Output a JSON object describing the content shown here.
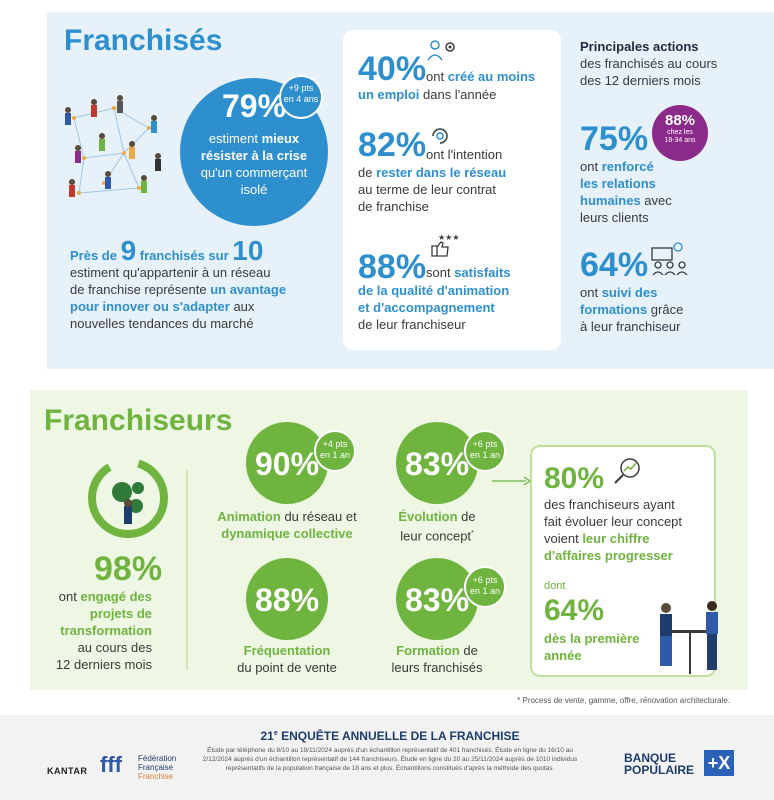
{
  "franchises": {
    "title": "Franchisés",
    "main_stat": {
      "value": "79%",
      "line1_a": "estiment ",
      "line1_b": "mieux",
      "line2": "résister à la crise",
      "line3": "qu'un commerçant",
      "line4": "isolé"
    },
    "badge": {
      "line1": "+9 pts",
      "line2": "en 4 ans"
    },
    "pres": {
      "a": "Près de ",
      "n1": "9",
      "b": " franchisés sur ",
      "n2": "10",
      "l2": "estiment qu'appartenir à un réseau",
      "l3a": "de franchise représente ",
      "l3b": "un avantage",
      "l4": "pour innover ou s'adapter",
      "l4b": " aux",
      "l5": "nouvelles tendances du marché"
    },
    "card": [
      {
        "value": "40%",
        "a": "ont ",
        "b": "créé au moins",
        "c": "un emploi",
        "d": " dans l'année"
      },
      {
        "value": "82%",
        "a": "ont l'intention",
        "b": "de ",
        "c": "rester dans le réseau",
        "d": "au terme de leur contrat",
        "e": "de franchise"
      },
      {
        "value": "88%",
        "a": "sont ",
        "b": "satisfaits",
        "c": "de la qualité d'animation",
        "d": "et d'accompagnement",
        "e": "de leur franchiseur"
      }
    ],
    "actions": {
      "title": "Principales actions",
      "sub1": "des franchisés au cours",
      "sub2": "des 12 derniers mois",
      "a1": {
        "value": "75%",
        "l1a": "ont ",
        "l1b": "renforcé",
        "l2": "les relations",
        "l3a": "humaines",
        "l3b": " avec",
        "l4": "leurs clients"
      },
      "badge": {
        "value": "88%",
        "l1": "chez les",
        "l2": "18-34 ans"
      },
      "a2": {
        "value": "64%",
        "l1a": "ont ",
        "l1b": "suivi des",
        "l2a": "formations",
        "l2b": " grâce",
        "l3": "à leur franchiseur"
      }
    }
  },
  "franchiseurs": {
    "title": "Franchiseurs",
    "s98": {
      "value": "98%",
      "l1a": "ont ",
      "l1b": "engagé des",
      "l2": "projets de",
      "l3": "transformation",
      "l4": "au cours des",
      "l5": "12 derniers mois"
    },
    "s90": {
      "value": "90%",
      "badge1": "+4 pts",
      "badge2": "en 1 an",
      "l1a": "Animation",
      "l1b": " du réseau et",
      "l2": "dynamique collective"
    },
    "s83a": {
      "value": "83%",
      "badge1": "+6 pts",
      "badge2": "en 1 an",
      "l1a": "Évolution",
      "l1b": " de",
      "l2": "leur concept",
      "sup": "*"
    },
    "s88": {
      "value": "88%",
      "l1": "Fréquentation",
      "l2": "du point de vente"
    },
    "s83b": {
      "value": "83%",
      "badge1": "+6 pts",
      "badge2": "en 1 an",
      "l1a": "Formation",
      "l1b": " de",
      "l2": "leurs franchisés"
    },
    "card": {
      "value": "80%",
      "l1": "des franchiseurs ayant",
      "l2": "fait évoluer leur concept",
      "l3a": "voient ",
      "l3b": "leur chiffre",
      "l4": "d'affaires progresser",
      "dont": "dont",
      "value2": "64%",
      "l5": "dès la première",
      "l6": "année"
    }
  },
  "footnote": "* Process de vente, gamme, offre, rénovation architecturale.",
  "footer": {
    "title_num": "21",
    "title_sup": "e",
    "title": " ENQUÊTE ANNUELLE DE LA FRANCHISE",
    "body1": "Étude par téléphone du 8/10 au 19/11/2024 auprès d'un échantillon représentatif de 401 franchisés. Étude en ligne du 16/10 au",
    "body2": "2/12/2024 auprès d'un échantillon représentatif de 144 franchiseurs. Étude en ligne du 20 au 25/11/2024 auprès de 1010 individus",
    "body3": "représentatifs de la population française de 18 ans et plus. Échantillons constitués d'après la méthode des quotas.",
    "kantar": "KANTAR",
    "fff": "fff",
    "fff_l1": "Fédération",
    "fff_l2": "Française",
    "fff_l3": "Franchise",
    "bp_l1": "BANQUE",
    "bp_l2": "POPULAIRE",
    "bp_mark": "+X"
  },
  "colors": {
    "blue": "#2e8fcf",
    "green": "#6fb43f",
    "light_blue_bg": "#e7f1f9",
    "light_green_bg": "#eef6e4",
    "purple": "#8a2a8a",
    "navy": "#1e3d6b"
  }
}
